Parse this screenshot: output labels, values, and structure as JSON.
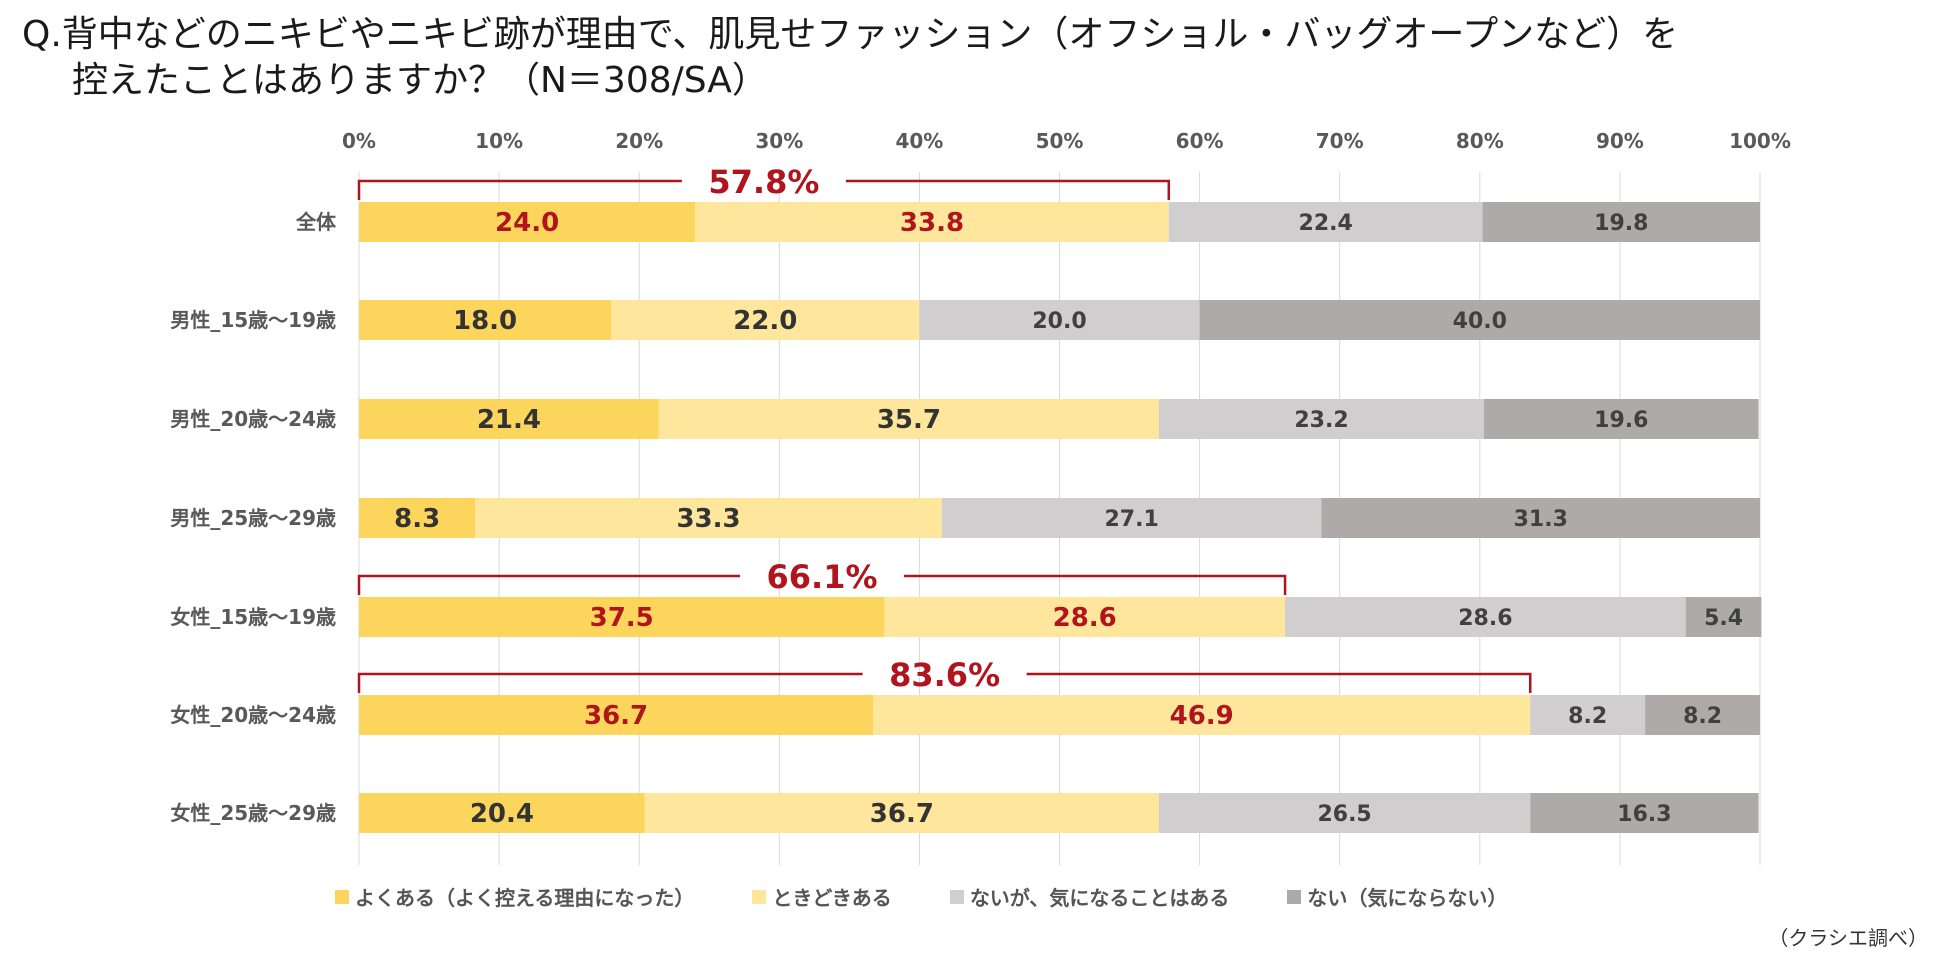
{
  "title": {
    "line1": "Q.背中などのニキビやニキビ跡が理由で、肌見せファッション（オフショル・バッグオープンなど）を",
    "line2": "控えたことはありますか？（N＝308/SA）"
  },
  "source": "（クラシエ調べ）",
  "colors": {
    "often": "#FCD55D",
    "sometimes": "#FEE79C",
    "notbut": "#D0CECE",
    "never": "#AEAAAA",
    "highlight": "#B0141C",
    "grid": "#D9D9D9",
    "axis_text": "#595959"
  },
  "chart_data": {
    "type": "bar",
    "orientation": "horizontal",
    "stacked": true,
    "percent_axis": true,
    "xlim": [
      0,
      100
    ],
    "x_ticks": [
      "0%",
      "10%",
      "20%",
      "30%",
      "40%",
      "50%",
      "60%",
      "70%",
      "80%",
      "90%",
      "100%"
    ],
    "categories": [
      "全体",
      "男性_15歳～19歳",
      "男性_20歳～24歳",
      "男性_25歳～29歳",
      "女性_15歳～19歳",
      "女性_20歳～24歳",
      "女性_25歳～29歳"
    ],
    "series": [
      {
        "name": "よくある（よく控える理由になった）",
        "key": "often",
        "values": [
          24.0,
          18.0,
          21.4,
          8.3,
          37.5,
          36.7,
          20.4
        ]
      },
      {
        "name": "ときどきある",
        "key": "sometimes",
        "values": [
          33.8,
          22.0,
          35.7,
          33.3,
          28.6,
          46.9,
          36.7
        ]
      },
      {
        "name": "ないが、気になることはある",
        "key": "notbut",
        "values": [
          22.4,
          20.0,
          23.2,
          27.1,
          28.6,
          8.2,
          26.5
        ]
      },
      {
        "name": "ない（気にならない）",
        "key": "never",
        "values": [
          19.8,
          40.0,
          19.6,
          31.3,
          5.4,
          8.2,
          16.3
        ]
      }
    ],
    "value_labels": [
      [
        "24.0",
        "33.8",
        "22.4",
        "19.8"
      ],
      [
        "18.0",
        "22.0",
        "20.0",
        "40.0"
      ],
      [
        "21.4",
        "35.7",
        "23.2",
        "19.6"
      ],
      [
        "8.3",
        "33.3",
        "27.1",
        "31.3"
      ],
      [
        "37.5",
        "28.6",
        "28.6",
        "5.4"
      ],
      [
        "36.7",
        "46.9",
        "8.2",
        "8.2"
      ],
      [
        "20.4",
        "36.7",
        "26.5",
        "16.3"
      ]
    ],
    "highlighted_rows": [
      0,
      4,
      5
    ],
    "annotations": [
      {
        "row": 0,
        "label": "57.8%",
        "value": 57.8
      },
      {
        "row": 4,
        "label": "66.1%",
        "value": 66.1
      },
      {
        "row": 5,
        "label": "83.6%",
        "value": 83.6
      }
    ],
    "legend_position": "bottom"
  }
}
